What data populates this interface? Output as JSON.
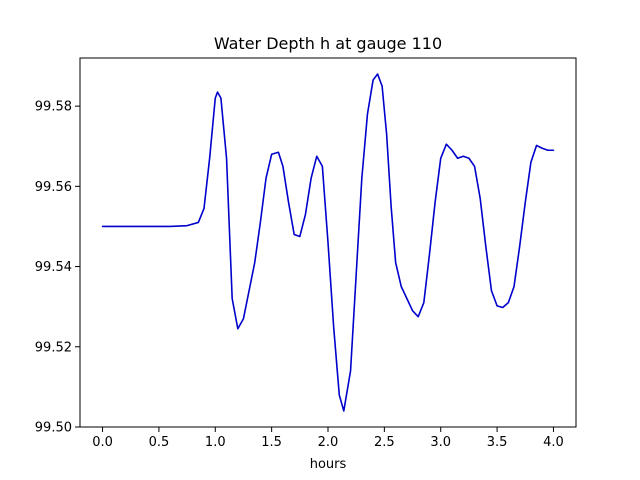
{
  "chart_data": {
    "type": "line",
    "title": "Water Depth h at gauge 110",
    "xlabel": "hours",
    "ylabel": "",
    "xlim": [
      -0.2,
      4.2
    ],
    "ylim": [
      99.5,
      99.592
    ],
    "xticks": [
      0.0,
      0.5,
      1.0,
      1.5,
      2.0,
      2.5,
      3.0,
      3.5,
      4.0
    ],
    "xtick_labels": [
      "0.0",
      "0.5",
      "1.0",
      "1.5",
      "2.0",
      "2.5",
      "3.0",
      "3.5",
      "4.0"
    ],
    "yticks": [
      99.5,
      99.52,
      99.54,
      99.56,
      99.58
    ],
    "ytick_labels": [
      "99.50",
      "99.52",
      "99.54",
      "99.56",
      "99.58"
    ],
    "grid": false,
    "series": [
      {
        "color": "#0000cc",
        "x": [
          0.0,
          0.2,
          0.4,
          0.6,
          0.75,
          0.85,
          0.9,
          0.95,
          1.0,
          1.02,
          1.05,
          1.1,
          1.15,
          1.2,
          1.25,
          1.3,
          1.35,
          1.4,
          1.45,
          1.5,
          1.56,
          1.6,
          1.65,
          1.7,
          1.75,
          1.8,
          1.85,
          1.9,
          1.95,
          2.0,
          2.05,
          2.1,
          2.14,
          2.2,
          2.25,
          2.3,
          2.35,
          2.4,
          2.44,
          2.48,
          2.52,
          2.56,
          2.6,
          2.65,
          2.7,
          2.75,
          2.8,
          2.85,
          2.9,
          2.95,
          3.0,
          3.05,
          3.1,
          3.15,
          3.2,
          3.25,
          3.3,
          3.35,
          3.4,
          3.45,
          3.5,
          3.55,
          3.6,
          3.65,
          3.7,
          3.75,
          3.8,
          3.85,
          3.9,
          3.95,
          3.98,
          4.0
        ],
        "y": [
          99.55,
          99.55,
          99.55,
          99.55,
          99.5502,
          99.551,
          99.5545,
          99.567,
          99.582,
          99.5835,
          99.582,
          99.567,
          99.532,
          99.5245,
          99.527,
          99.534,
          99.541,
          99.551,
          99.562,
          99.568,
          99.5685,
          99.565,
          99.556,
          99.548,
          99.5475,
          99.553,
          99.562,
          99.5675,
          99.565,
          99.546,
          99.525,
          99.508,
          99.504,
          99.514,
          99.538,
          99.562,
          99.578,
          99.5865,
          99.588,
          99.585,
          99.573,
          99.555,
          99.541,
          99.535,
          99.532,
          99.529,
          99.5275,
          99.531,
          99.543,
          99.556,
          99.567,
          99.5705,
          99.569,
          99.567,
          99.5675,
          99.567,
          99.565,
          99.557,
          99.545,
          99.534,
          99.5302,
          99.5298,
          99.531,
          99.535,
          99.545,
          99.556,
          99.566,
          99.5702,
          99.5695,
          99.569,
          99.569,
          99.569
        ]
      }
    ]
  }
}
